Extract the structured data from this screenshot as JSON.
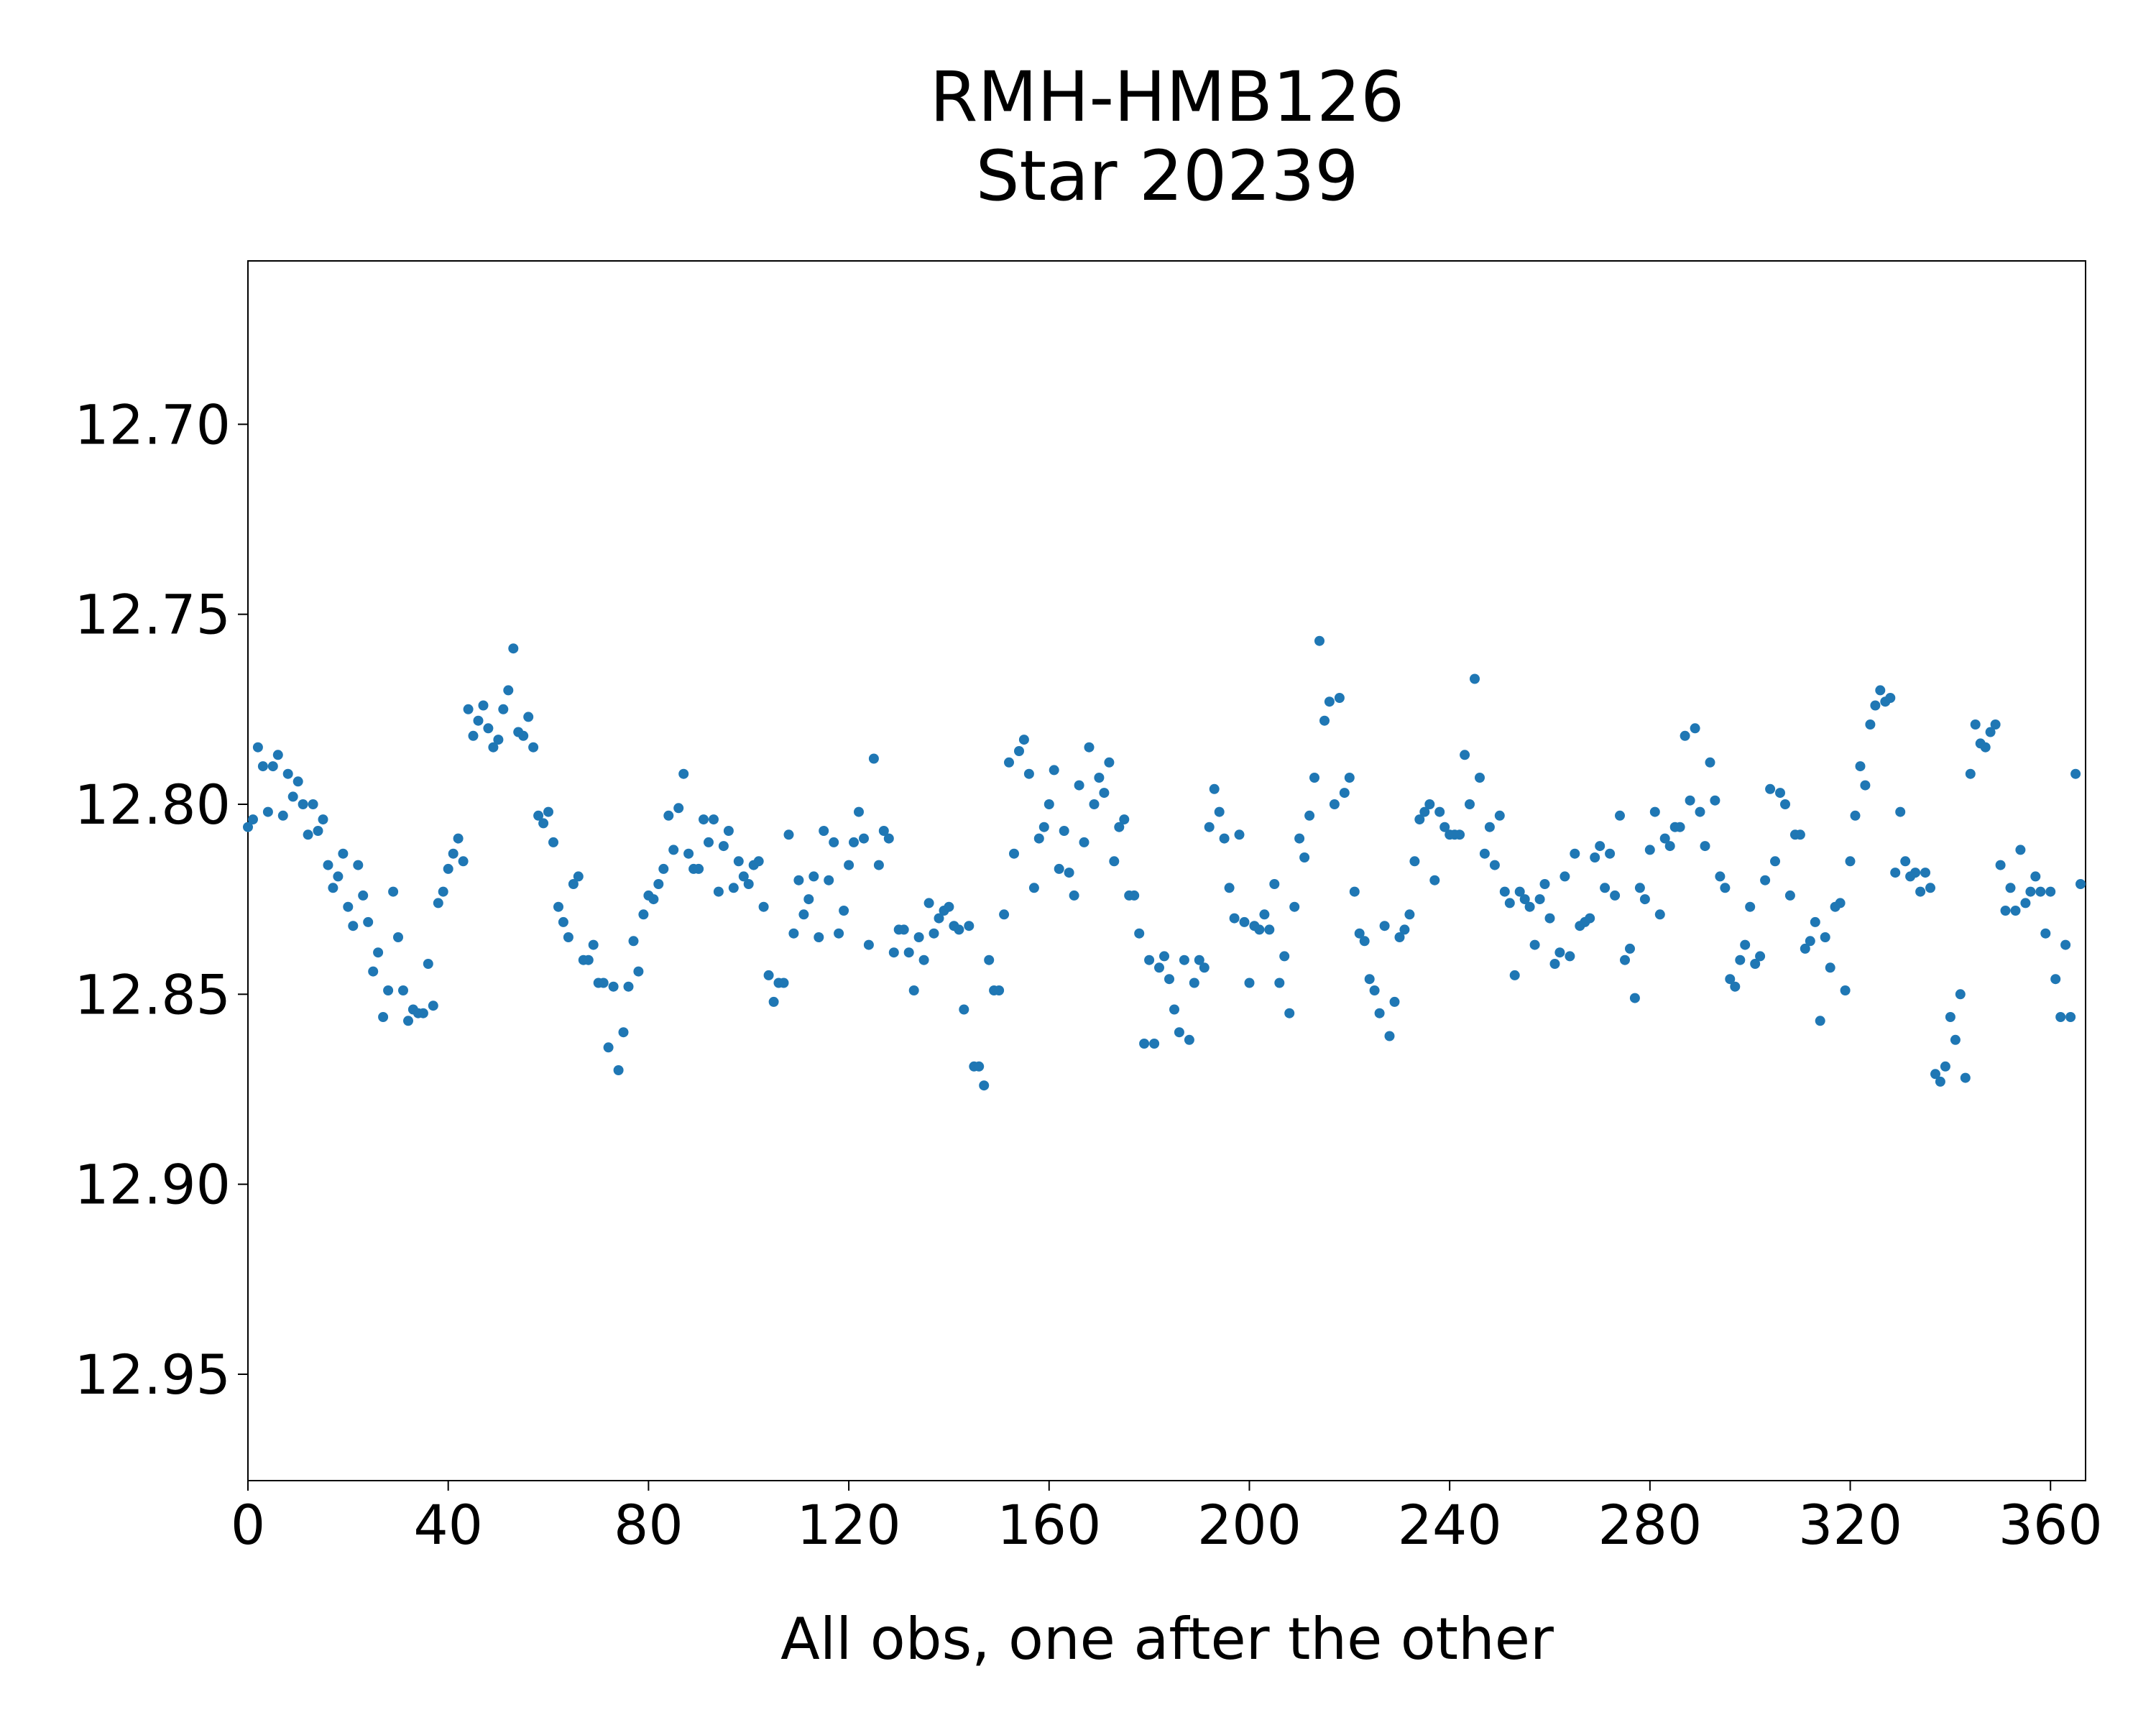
{
  "chart_data": {
    "type": "scatter",
    "title": "RMH-HMB126",
    "subtitle": "Star 20239",
    "xlabel": "All obs, one after the other",
    "ylabel": "",
    "xlim": [
      0,
      367
    ],
    "ylim": [
      12.978,
      12.657
    ],
    "y_inverted": true,
    "grid": false,
    "marker_color": "#1f77b4",
    "x_ticks": [
      0,
      40,
      80,
      120,
      160,
      200,
      240,
      280,
      320,
      360
    ],
    "x_tick_labels": [
      "0",
      "40",
      "80",
      "120",
      "160",
      "200",
      "240",
      "280",
      "320",
      "360"
    ],
    "y_ticks": [
      12.7,
      12.75,
      12.8,
      12.85,
      12.9,
      12.95
    ],
    "y_tick_labels": [
      "12.70",
      "12.75",
      "12.80",
      "12.85",
      "12.90",
      "12.95"
    ],
    "y": [
      12.806,
      12.804,
      12.785,
      12.79,
      12.802,
      12.79,
      12.787,
      12.803,
      12.792,
      12.798,
      12.794,
      12.8,
      12.808,
      12.8,
      12.807,
      12.804,
      12.816,
      12.822,
      12.819,
      12.813,
      12.827,
      12.832,
      12.816,
      12.824,
      12.831,
      12.844,
      12.839,
      12.856,
      12.849,
      12.823,
      12.835,
      12.849,
      12.857,
      12.854,
      12.855,
      12.855,
      12.842,
      12.853,
      12.826,
      12.823,
      12.817,
      12.813,
      12.809,
      12.815,
      12.775,
      12.782,
      12.778,
      12.774,
      12.78,
      12.785,
      12.783,
      12.775,
      12.77,
      12.759,
      12.781,
      12.782,
      12.777,
      12.785,
      12.803,
      12.805,
      12.802,
      12.81,
      12.827,
      12.831,
      12.835,
      12.821,
      12.819,
      12.841,
      12.841,
      12.837,
      12.847,
      12.847,
      12.864,
      12.848,
      12.87,
      12.86,
      12.848,
      12.836,
      12.844,
      12.829,
      12.824,
      12.825,
      12.821,
      12.817,
      12.803,
      12.812,
      12.801,
      12.792,
      12.813,
      12.817,
      12.817,
      12.804,
      12.81,
      12.804,
      12.823,
      12.811,
      12.807,
      12.822,
      12.815,
      12.819,
      12.821,
      12.816,
      12.815,
      12.827,
      12.845,
      12.852,
      12.847,
      12.847,
      12.808,
      12.834,
      12.82,
      12.829,
      12.825,
      12.819,
      12.835,
      12.807,
      12.82,
      12.81,
      12.834,
      12.828,
      12.816,
      12.81,
      12.802,
      12.809,
      12.837,
      12.788,
      12.816,
      12.807,
      12.809,
      12.839,
      12.833,
      12.833,
      12.839,
      12.849,
      12.835,
      12.841,
      12.826,
      12.834,
      12.83,
      12.828,
      12.827,
      12.832,
      12.833,
      12.854,
      12.832,
      12.869,
      12.869,
      12.874,
      12.841,
      12.849,
      12.849,
      12.829,
      12.789,
      12.813,
      12.786,
      12.783,
      12.792,
      12.822,
      12.809,
      12.806,
      12.8,
      12.791,
      12.817,
      12.807,
      12.818,
      12.824,
      12.795,
      12.81,
      12.785,
      12.8,
      12.793,
      12.797,
      12.789,
      12.815,
      12.806,
      12.804,
      12.824,
      12.824,
      12.834,
      12.863,
      12.841,
      12.863,
      12.843,
      12.84,
      12.846,
      12.854,
      12.86,
      12.841,
      12.862,
      12.847,
      12.841,
      12.843,
      12.806,
      12.796,
      12.802,
      12.809,
      12.822,
      12.83,
      12.808,
      12.831,
      12.847,
      12.832,
      12.833,
      12.829,
      12.833,
      12.821,
      12.847,
      12.84,
      12.855,
      12.827,
      12.809,
      12.814,
      12.803,
      12.793,
      12.757,
      12.778,
      12.773,
      12.8,
      12.772,
      12.797,
      12.793,
      12.823,
      12.834,
      12.836,
      12.846,
      12.849,
      12.855,
      12.832,
      12.861,
      12.852,
      12.835,
      12.833,
      12.829,
      12.815,
      12.804,
      12.802,
      12.8,
      12.82,
      12.802,
      12.806,
      12.808,
      12.808,
      12.808,
      12.787,
      12.8,
      12.767,
      12.793,
      12.813,
      12.806,
      12.816,
      12.803,
      12.823,
      12.826,
      12.845,
      12.823,
      12.825,
      12.827,
      12.837,
      12.825,
      12.821,
      12.83,
      12.842,
      12.839,
      12.819,
      12.84,
      12.813,
      12.832,
      12.831,
      12.83,
      12.814,
      12.811,
      12.822,
      12.813,
      12.824,
      12.803,
      12.841,
      12.838,
      12.851,
      12.822,
      12.825,
      12.812,
      12.802,
      12.829,
      12.809,
      12.811,
      12.806,
      12.806,
      12.782,
      12.799,
      12.78,
      12.802,
      12.811,
      12.789,
      12.799,
      12.819,
      12.822,
      12.846,
      12.848,
      12.841,
      12.837,
      12.827,
      12.842,
      12.84,
      12.82,
      12.796,
      12.815,
      12.797,
      12.8,
      12.824,
      12.808,
      12.808,
      12.838,
      12.836,
      12.831,
      12.857,
      12.835,
      12.843,
      12.827,
      12.826,
      12.849,
      12.815,
      12.803,
      12.79,
      12.795,
      12.779,
      12.774,
      12.77,
      12.773,
      12.772,
      12.818,
      12.802,
      12.815,
      12.819,
      12.818,
      12.823,
      12.818,
      12.822,
      12.871,
      12.873,
      12.869,
      12.856,
      12.862,
      12.85,
      12.872,
      12.792,
      12.779,
      12.784,
      12.785,
      12.781,
      12.779,
      12.816,
      12.828,
      12.822,
      12.828,
      12.812,
      12.826,
      12.823,
      12.819,
      12.823,
      12.834,
      12.823,
      12.846,
      12.856,
      12.837,
      12.856,
      12.792,
      12.821
    ]
  }
}
